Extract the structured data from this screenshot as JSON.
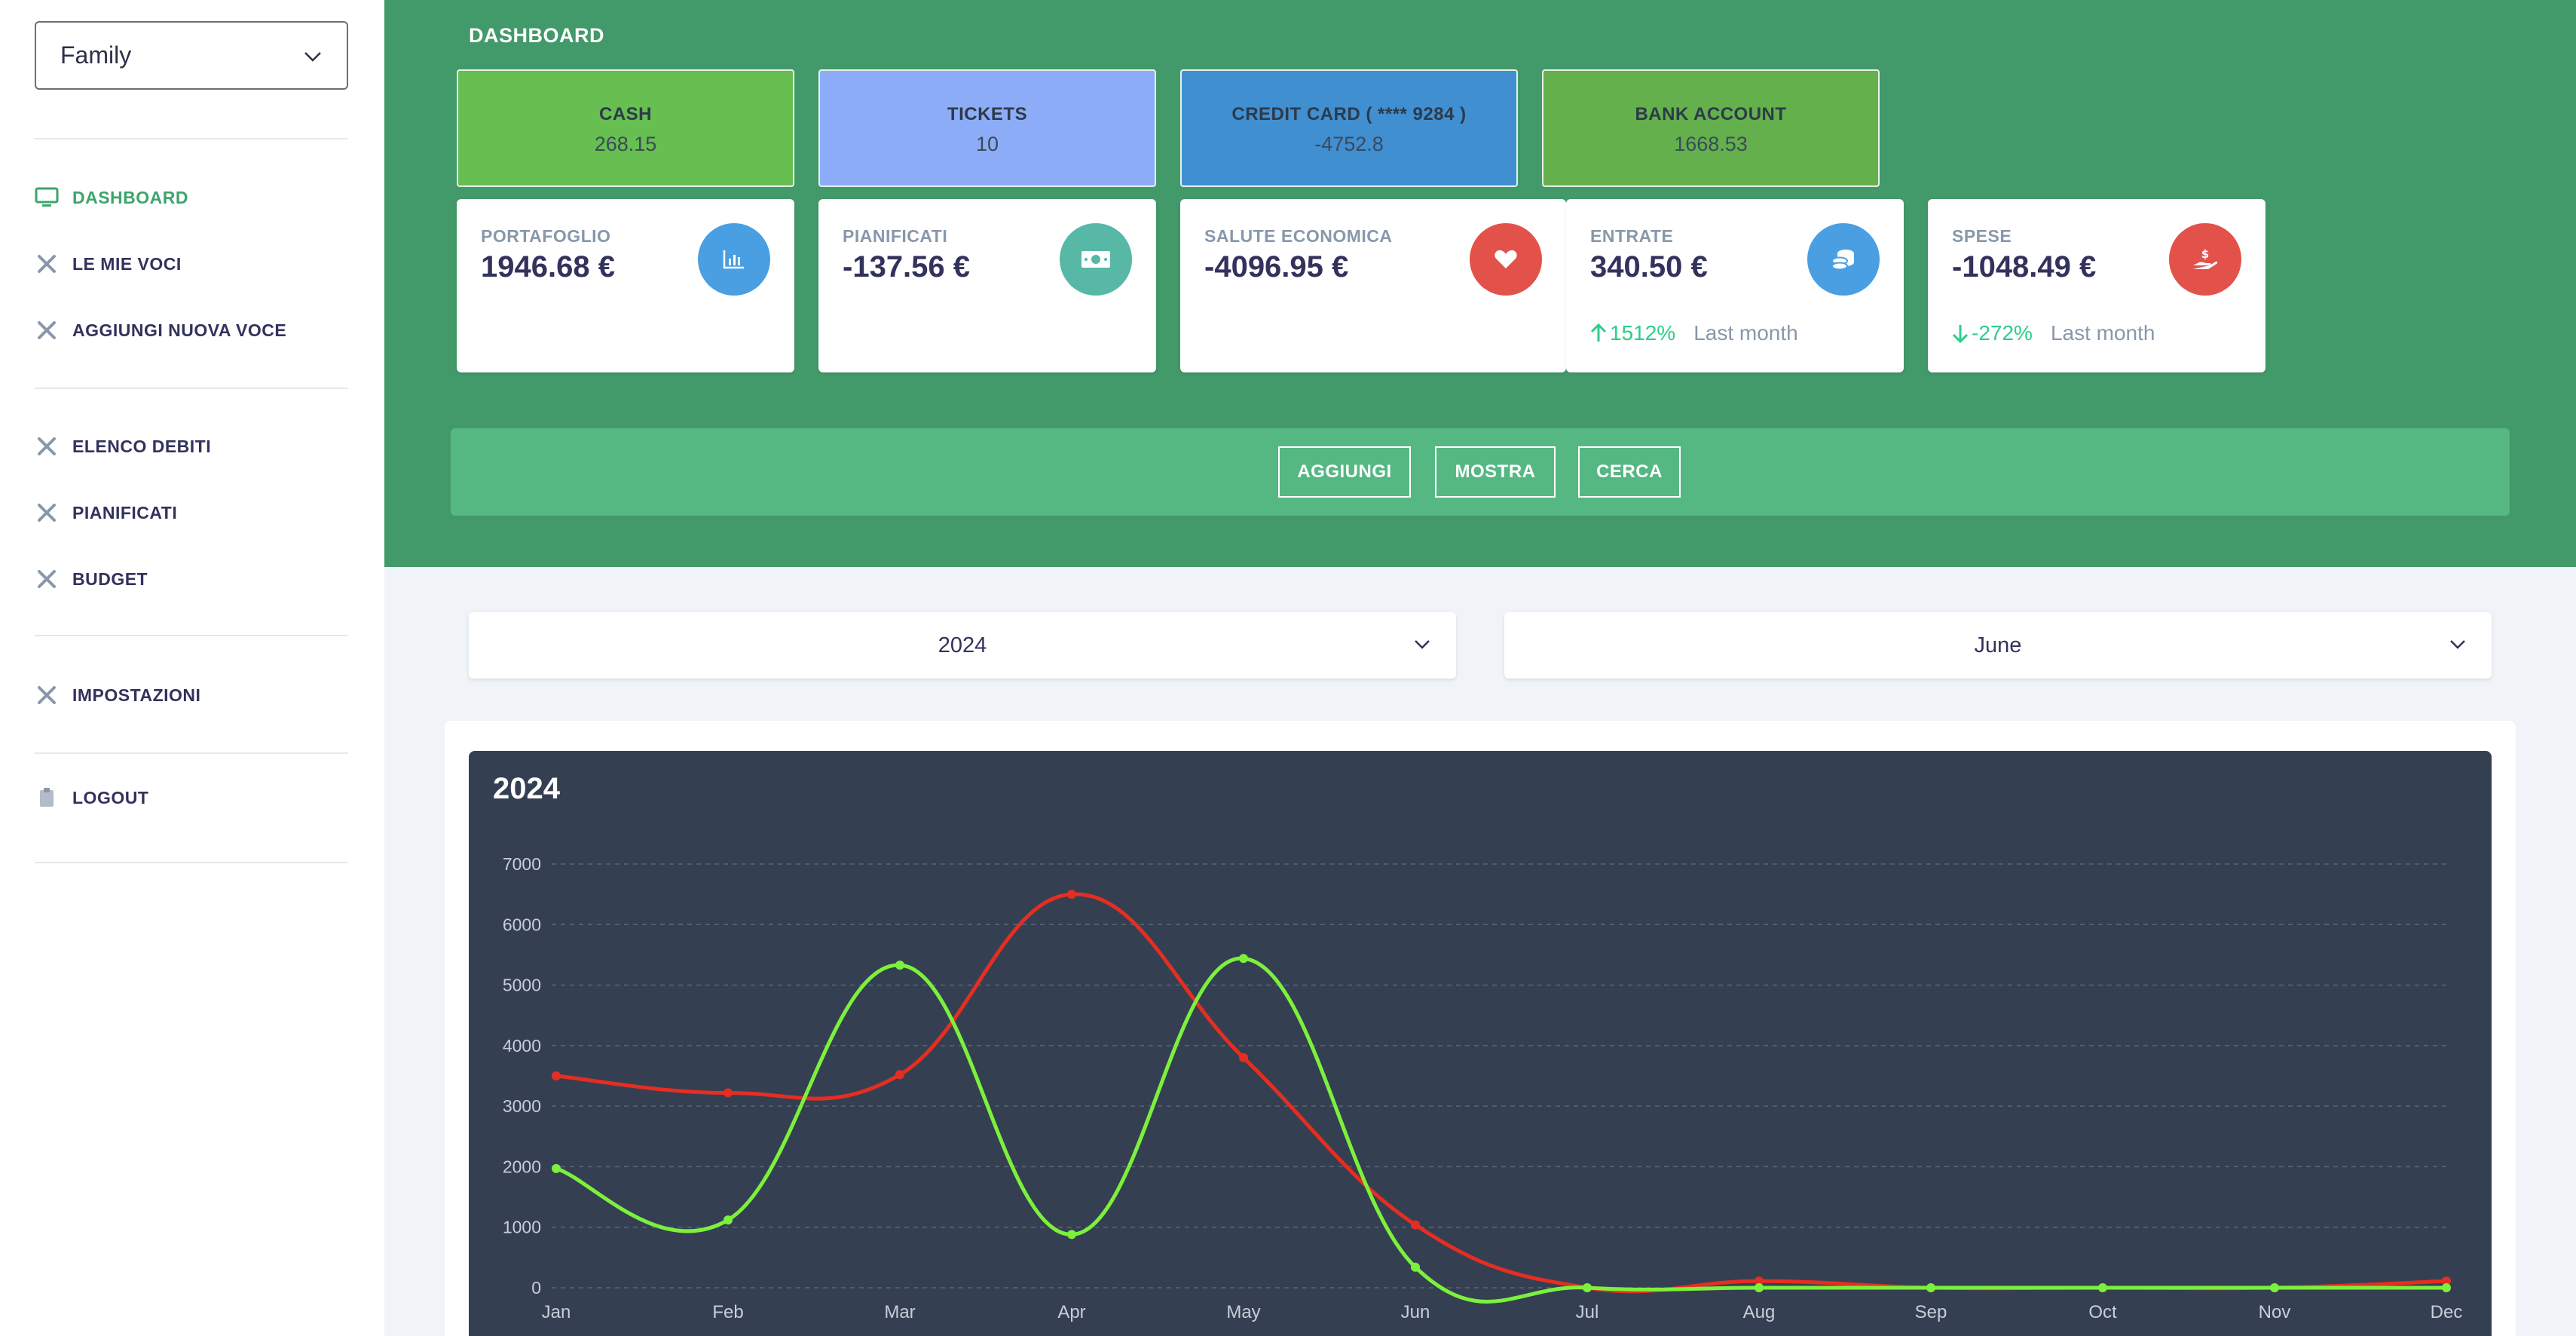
{
  "sidebar": {
    "account_select": "Family",
    "items": [
      {
        "label": "DASHBOARD",
        "icon": "monitor-icon",
        "active": true
      },
      {
        "label": "LE MIE VOCI",
        "icon": "tools-icon"
      },
      {
        "label": "AGGIUNGI NUOVA VOCE",
        "icon": "tools-icon"
      },
      {
        "label": "ELENCO DEBITI",
        "icon": "tools-icon"
      },
      {
        "label": "PIANIFICATI",
        "icon": "tools-icon"
      },
      {
        "label": "BUDGET",
        "icon": "tools-icon"
      },
      {
        "label": "IMPOSTAZIONI",
        "icon": "tools-icon"
      },
      {
        "label": "LOGOUT",
        "icon": "clipboard-icon"
      }
    ]
  },
  "header": {
    "title": "DASHBOARD",
    "accounts": [
      {
        "label": "CASH",
        "value": "268.15",
        "color": "#66bf50"
      },
      {
        "label": "TICKETS",
        "value": "10",
        "color": "#8cacf7"
      },
      {
        "label": "CREDIT CARD ( **** 9284 )",
        "value": "-4752.8",
        "color": "#3f8fd1"
      },
      {
        "label": "BANK ACCOUNT",
        "value": "1668.53",
        "color": "#63b04c"
      }
    ],
    "stats": [
      {
        "label": "PORTAFOGLIO",
        "value": "1946.68 €",
        "icon": "chart-bar-icon",
        "icon_color": "#4a9fe2"
      },
      {
        "label": "PIANIFICATI",
        "value": "-137.56 €",
        "icon": "money-bill-icon",
        "icon_color": "#57b8a6"
      },
      {
        "label": "SALUTE ECONOMICA",
        "value": "-4096.95 €",
        "icon": "heart-icon",
        "icon_color": "#e2524b"
      },
      {
        "label": "ENTRATE",
        "value": "340.50 €",
        "icon": "coins-icon",
        "icon_color": "#4a9fe2",
        "trend": "1512%",
        "trend_dir": "up",
        "trend_label": "Last month"
      },
      {
        "label": "SPESE",
        "value": "-1048.49 €",
        "icon": "hand-dollar-icon",
        "icon_color": "#e2524b",
        "trend": "-272%",
        "trend_dir": "down",
        "trend_label": "Last month"
      }
    ],
    "actions": [
      "AGGIUNGI",
      "MOSTRA",
      "CERCA"
    ]
  },
  "filters": {
    "year": "2024",
    "month": "June"
  },
  "chart_data": {
    "type": "line",
    "title": "2024",
    "categories": [
      "Jan",
      "Feb",
      "Mar",
      "Apr",
      "May",
      "Jun",
      "Jul",
      "Aug",
      "Sep",
      "Oct",
      "Nov",
      "Dec"
    ],
    "ylim": [
      0,
      7000
    ],
    "yticks": [
      0,
      1000,
      2000,
      3000,
      4000,
      5000,
      6000,
      7000
    ],
    "grid": true,
    "series": [
      {
        "color": "#e52e21",
        "values": [
          3500,
          3220,
          3520,
          6500,
          3800,
          1040,
          0,
          110,
          0,
          0,
          0,
          110
        ]
      },
      {
        "color": "#7cf13c",
        "values": [
          1970,
          1120,
          5330,
          880,
          5440,
          340,
          0,
          0,
          0,
          0,
          0,
          0
        ]
      }
    ]
  }
}
